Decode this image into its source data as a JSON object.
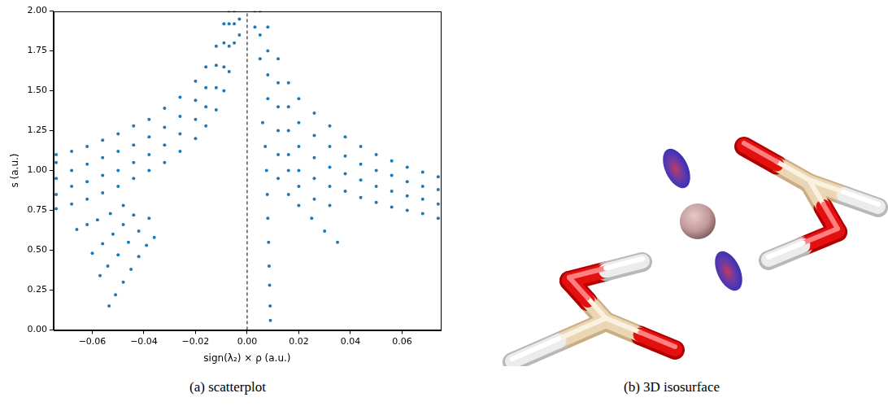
{
  "chart_data": {
    "type": "scatter",
    "x_label": "sign(λ₂) × ρ (a.u.)",
    "y_label": "s (a.u.)",
    "color": "#1f77b4",
    "marker": "dot",
    "grid": false,
    "xlim": [
      -0.075,
      0.075
    ],
    "xticks": [
      {
        "value": -0.06,
        "label": "−0.06"
      },
      {
        "value": -0.04,
        "label": "−0.04"
      },
      {
        "value": -0.02,
        "label": "−0.02"
      },
      {
        "value": 0,
        "label": "0.00"
      },
      0.02,
      0.04,
      0.06
    ],
    "ylim": [
      0,
      2
    ],
    "yticks": [
      {
        "value": 0,
        "label": "0.00"
      },
      0.25,
      {
        "value": 0.5,
        "label": "0.50"
      },
      0.75,
      {
        "value": 1,
        "label": "1.00"
      },
      1.25,
      {
        "value": 1.5,
        "label": "1.50"
      },
      1.75,
      {
        "value": 2,
        "label": "2.00"
      }
    ],
    "vline": {
      "x": 0,
      "line_style": "dashed",
      "color": "#000000"
    },
    "x": [
      -0.074,
      -0.074,
      -0.074,
      -0.074,
      -0.074,
      -0.068,
      -0.068,
      -0.068,
      -0.068,
      -0.062,
      -0.062,
      -0.062,
      -0.062,
      -0.056,
      -0.056,
      -0.056,
      -0.056,
      -0.05,
      -0.05,
      -0.05,
      -0.05,
      -0.044,
      -0.044,
      -0.044,
      -0.044,
      -0.038,
      -0.038,
      -0.038,
      -0.038,
      -0.032,
      -0.032,
      -0.032,
      -0.032,
      -0.026,
      -0.026,
      -0.026,
      -0.026,
      -0.02,
      -0.02,
      -0.02,
      -0.02,
      -0.016,
      -0.016,
      -0.016,
      -0.016,
      -0.012,
      -0.012,
      -0.012,
      -0.012,
      -0.009,
      -0.009,
      -0.009,
      -0.009,
      -0.007,
      -0.007,
      -0.007,
      -0.007,
      -0.005,
      -0.005,
      -0.005,
      -0.003,
      -0.003,
      -0.0535,
      -0.051,
      -0.048,
      -0.045,
      -0.042,
      -0.039,
      -0.036,
      -0.057,
      -0.054,
      -0.05,
      -0.046,
      -0.042,
      -0.038,
      -0.06,
      -0.056,
      -0.052,
      -0.048,
      -0.044,
      -0.066,
      -0.062,
      -0.058,
      -0.053,
      -0.048,
      0.003,
      0.003,
      0.005,
      0.005,
      0.005,
      0.006,
      0.007,
      0.008,
      0.008,
      0.008,
      0.008,
      0.012,
      0.012,
      0.012,
      0.012,
      0.016,
      0.016,
      0.016,
      0.016,
      0.02,
      0.02,
      0.02,
      0.02,
      0.026,
      0.026,
      0.026,
      0.026,
      0.032,
      0.032,
      0.032,
      0.032,
      0.038,
      0.038,
      0.038,
      0.038,
      0.044,
      0.044,
      0.044,
      0.044,
      0.05,
      0.05,
      0.05,
      0.05,
      0.056,
      0.056,
      0.056,
      0.056,
      0.062,
      0.062,
      0.062,
      0.062,
      0.068,
      0.068,
      0.068,
      0.068,
      0.074,
      0.074,
      0.074,
      0.074,
      0.0075,
      0.0078,
      0.008,
      0.0083,
      0.0085,
      0.0087,
      0.0089,
      0.009,
      0.012,
      0.016,
      0.02,
      0.025,
      0.03,
      0.035,
      0.012,
      0.016,
      0.02,
      0.026,
      0.032
    ],
    "values": [
      0.76,
      0.85,
      0.95,
      1.05,
      1.1,
      0.79,
      0.9,
      1.0,
      1.12,
      0.82,
      0.93,
      1.04,
      1.15,
      0.86,
      0.97,
      1.08,
      1.19,
      0.9,
      1.0,
      1.12,
      1.23,
      0.95,
      1.05,
      1.16,
      1.28,
      1.0,
      1.1,
      1.21,
      1.32,
      1.05,
      1.16,
      1.27,
      1.39,
      1.12,
      1.23,
      1.34,
      1.46,
      1.2,
      1.32,
      1.44,
      1.56,
      1.28,
      1.4,
      1.52,
      1.65,
      1.38,
      1.52,
      1.66,
      1.78,
      1.5,
      1.65,
      1.8,
      1.92,
      1.62,
      1.78,
      1.92,
      2.0,
      1.8,
      1.92,
      2.0,
      1.85,
      1.95,
      0.15,
      0.22,
      0.3,
      0.38,
      0.46,
      0.53,
      0.58,
      0.34,
      0.4,
      0.47,
      0.55,
      0.62,
      0.7,
      0.48,
      0.54,
      0.6,
      0.66,
      0.72,
      0.63,
      0.66,
      0.69,
      0.73,
      0.78,
      1.9,
      2.0,
      1.7,
      1.85,
      2.0,
      1.3,
      1.15,
      1.45,
      1.6,
      1.75,
      1.9,
      1.25,
      1.4,
      1.55,
      1.7,
      1.1,
      1.25,
      1.4,
      1.55,
      1.0,
      1.15,
      1.3,
      1.45,
      0.95,
      1.08,
      1.22,
      1.36,
      0.9,
      1.02,
      1.15,
      1.28,
      0.87,
      0.98,
      1.09,
      1.21,
      0.83,
      0.94,
      1.04,
      1.15,
      0.8,
      0.9,
      1.0,
      1.1,
      0.77,
      0.87,
      0.97,
      1.06,
      0.75,
      0.84,
      0.93,
      1.02,
      0.73,
      0.82,
      0.9,
      0.99,
      0.7,
      0.79,
      0.88,
      0.96,
      1.0,
      0.85,
      0.7,
      0.55,
      0.4,
      0.28,
      0.15,
      0.06,
      0.95,
      0.85,
      0.78,
      0.7,
      0.62,
      0.55,
      1.1,
      1.0,
      0.9,
      0.82,
      0.78
    ]
  },
  "panels": [
    {
      "caption": "(a) scatterplot"
    },
    {
      "caption": "(b) 3D isosurface"
    }
  ]
}
